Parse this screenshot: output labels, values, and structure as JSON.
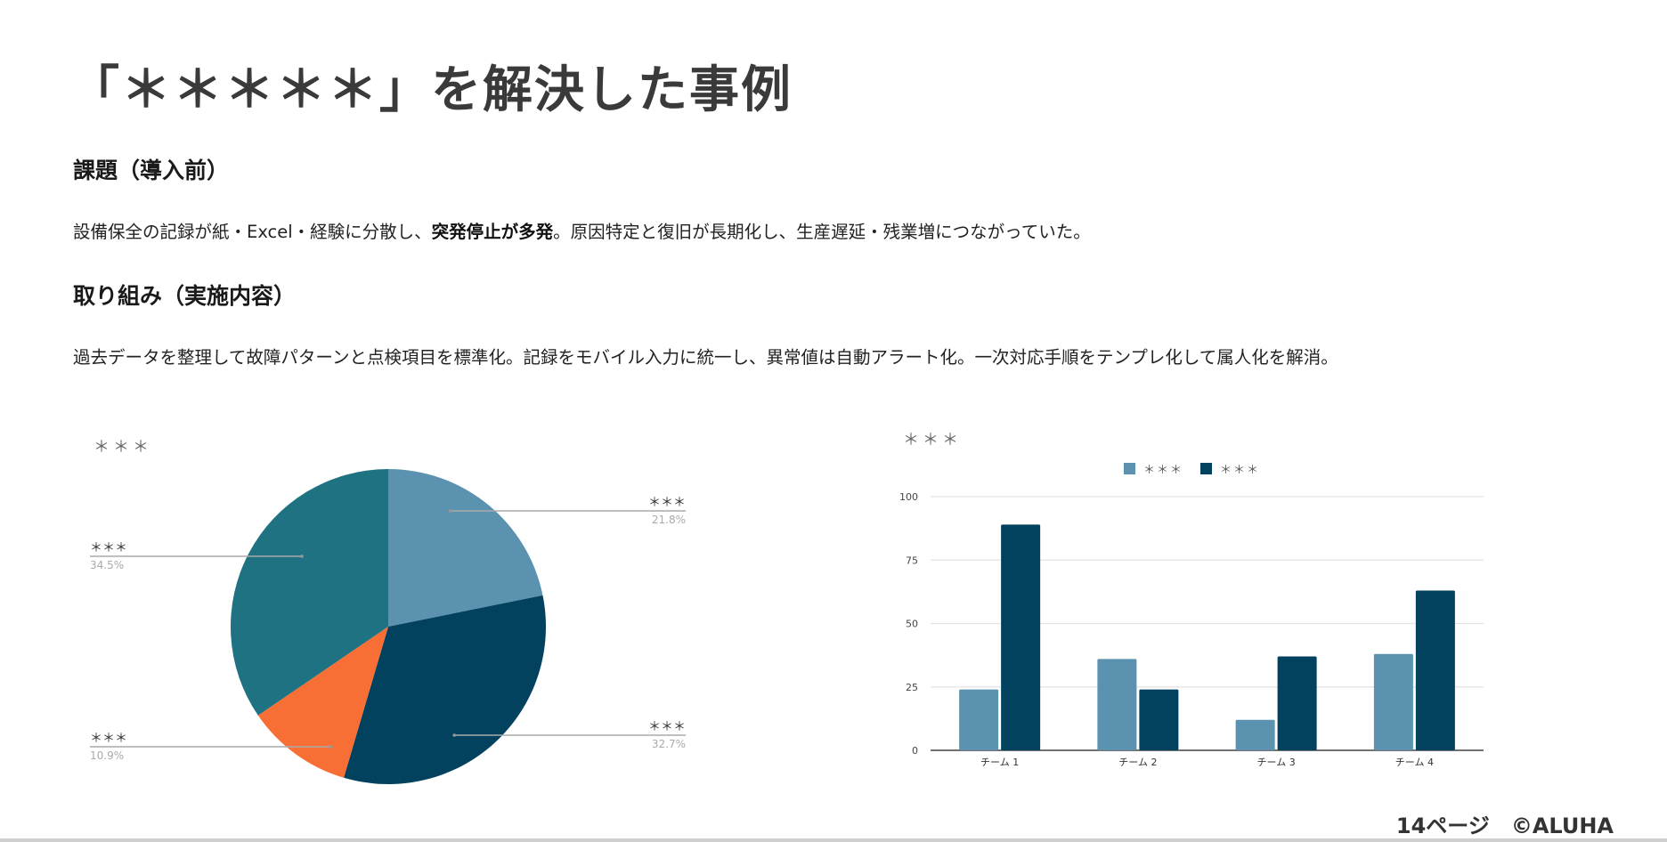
{
  "page": {
    "title": "「＊＊＊＊＊」を解決した事例",
    "issue_heading": "課題（導入前）",
    "issue_text_before": "設備保全の記録が紙・Excel・経験に分散し、",
    "issue_text_bold": "突発停止が多発",
    "issue_text_after": "。原因特定と復旧が長期化し、生産遅延・残業増につながっていた。",
    "action_heading": "取り組み（実施内容）",
    "action_text": "過去データを整理して故障パターンと点検項目を標準化。記録をモバイル入力に統一し、異常値は自動アラート化。一次対応手順をテンプレ化して属人化を解消。",
    "footer": "14ページ　©ALUHA"
  },
  "chart_data": [
    {
      "type": "pie",
      "title": "＊＊＊",
      "slices": [
        {
          "label": "＊＊＊",
          "value": 21.8,
          "pct_label": "21.8%",
          "color": "#5a92b0"
        },
        {
          "label": "＊＊＊",
          "value": 32.7,
          "pct_label": "32.7%",
          "color": "#03425e"
        },
        {
          "label": "＊＊＊",
          "value": 10.9,
          "pct_label": "10.9%",
          "color": "#f86f35"
        },
        {
          "label": "＊＊＊",
          "value": 34.5,
          "pct_label": "34.5%",
          "color": "#1e7282"
        }
      ]
    },
    {
      "type": "bar",
      "title": "＊＊＊",
      "categories": [
        "チーム 1",
        "チーム 2",
        "チーム 3",
        "チーム 4"
      ],
      "series": [
        {
          "name": "＊＊＊",
          "values": [
            24,
            36,
            12,
            38
          ],
          "color": "#5a92b0"
        },
        {
          "name": "＊＊＊",
          "values": [
            89,
            24,
            37,
            63
          ],
          "color": "#03425e"
        }
      ],
      "ylim": [
        0,
        100
      ],
      "yticks": [
        0,
        25,
        50,
        75,
        100
      ],
      "grid": true,
      "legend": "top"
    }
  ]
}
